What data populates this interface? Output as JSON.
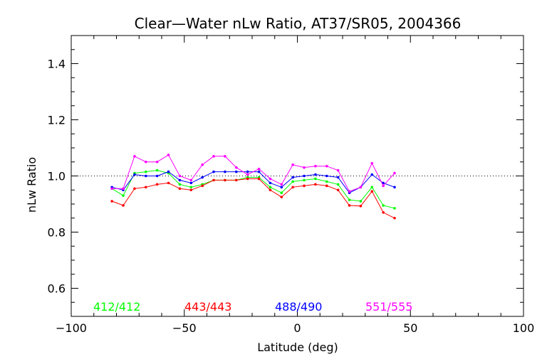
{
  "chart_data": {
    "type": "line",
    "title": "Clear—Water nLw Ratio, AT37/SR05, 2004366",
    "xlabel": "Latitude (deg)",
    "ylabel": "nLw Ratio",
    "xlim": [
      -100,
      100
    ],
    "ylim": [
      0.5,
      1.5
    ],
    "xticks": [
      -100,
      -50,
      0,
      50,
      100
    ],
    "xtick_labels": [
      "−100",
      "−50",
      "0",
      "50",
      "100"
    ],
    "yticks": [
      0.6,
      0.8,
      1.0,
      1.2,
      1.4
    ],
    "ytick_labels": [
      "0.6",
      "0.8",
      "1.0",
      "1.2",
      "1.4"
    ],
    "reference_line": 1.0,
    "grid": false,
    "legend_position": "bottom-inside",
    "x": [
      -82,
      -77,
      -72,
      -67,
      -62,
      -57,
      -52,
      -47,
      -42,
      -37,
      -32,
      -27,
      -22,
      -17,
      -12,
      -7,
      -2,
      3,
      8,
      13,
      18,
      23,
      28,
      33,
      38,
      43
    ],
    "series": [
      {
        "name": "412/412",
        "color": "#00ff00",
        "values": [
          0.955,
          0.93,
          1.01,
          1.015,
          1.02,
          1.01,
          0.97,
          0.96,
          0.97,
          0.985,
          0.985,
          0.985,
          0.995,
          0.995,
          0.96,
          0.94,
          0.98,
          0.985,
          0.99,
          0.98,
          0.97,
          0.915,
          0.91,
          0.96,
          0.895,
          0.885
        ]
      },
      {
        "name": "443/443",
        "color": "#ff0000",
        "values": [
          0.91,
          0.895,
          0.955,
          0.96,
          0.97,
          0.975,
          0.955,
          0.95,
          0.965,
          0.985,
          0.985,
          0.985,
          0.99,
          0.99,
          0.95,
          0.925,
          0.96,
          0.965,
          0.97,
          0.965,
          0.95,
          0.895,
          0.893,
          0.945,
          0.87,
          0.85
        ]
      },
      {
        "name": "488/490",
        "color": "#0000ff",
        "values": [
          0.96,
          0.95,
          1.005,
          1.0,
          1.0,
          1.015,
          0.985,
          0.975,
          0.995,
          1.015,
          1.015,
          1.015,
          1.015,
          1.015,
          0.975,
          0.96,
          0.995,
          1.0,
          1.005,
          1.0,
          0.995,
          0.94,
          0.96,
          1.005,
          0.975,
          0.96
        ]
      },
      {
        "name": "551/555",
        "color": "#ff00ff",
        "values": [
          0.955,
          0.955,
          1.07,
          1.05,
          1.05,
          1.075,
          1.0,
          0.985,
          1.04,
          1.07,
          1.07,
          1.03,
          1.005,
          1.025,
          0.99,
          0.97,
          1.04,
          1.03,
          1.035,
          1.035,
          1.02,
          0.945,
          0.96,
          1.045,
          0.965,
          1.01
        ]
      }
    ]
  }
}
